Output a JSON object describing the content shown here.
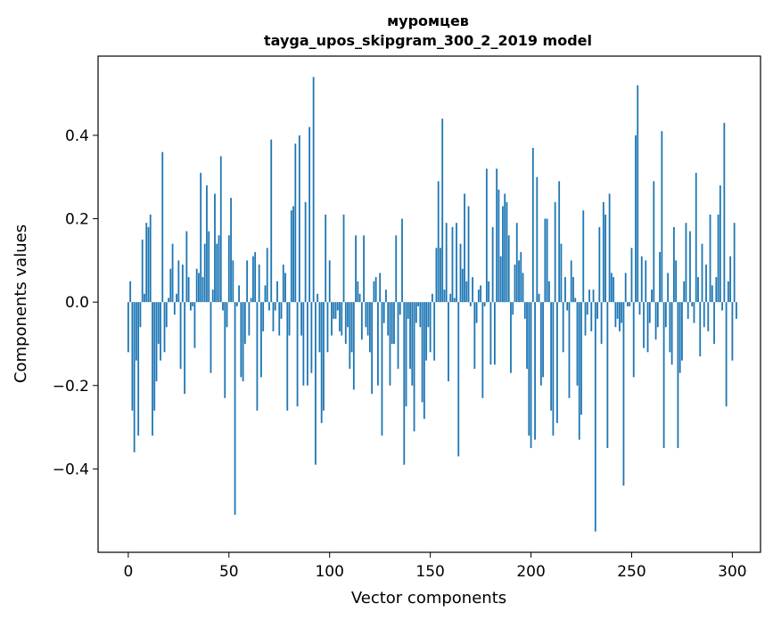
{
  "chart_data": {
    "type": "bar",
    "title_line1": "муромцев",
    "title_line2": "tayga_upos_skipgram_300_2_2019 model",
    "xlabel": "Vector components",
    "ylabel": "Components values",
    "xlim": [
      -15,
      314
    ],
    "ylim": [
      -0.6,
      0.59
    ],
    "xticks": [
      0,
      50,
      100,
      150,
      200,
      250,
      300
    ],
    "xtick_labels": [
      "0",
      "50",
      "100",
      "150",
      "200",
      "250",
      "300"
    ],
    "yticks": [
      -0.4,
      -0.2,
      0.0,
      0.2,
      0.4
    ],
    "ytick_labels": [
      "−0.4",
      "−0.2",
      "0.0",
      "0.2",
      "0.4"
    ],
    "bar_color": "#1f77b4",
    "values": [
      -0.12,
      0.05,
      -0.26,
      -0.36,
      -0.14,
      -0.32,
      -0.06,
      0.15,
      0.02,
      0.19,
      0.18,
      0.21,
      -0.32,
      -0.26,
      -0.19,
      -0.1,
      -0.14,
      0.36,
      -0.12,
      -0.06,
      0.01,
      0.08,
      0.14,
      -0.03,
      0.02,
      0.1,
      -0.16,
      0.09,
      -0.22,
      0.17,
      0.06,
      -0.02,
      -0.01,
      -0.11,
      0.08,
      0.07,
      0.31,
      0.06,
      0.14,
      0.28,
      0.17,
      -0.17,
      0.03,
      0.26,
      0.14,
      0.16,
      0.35,
      -0.02,
      -0.23,
      -0.06,
      0.16,
      0.25,
      0.1,
      -0.51,
      -0.01,
      0.04,
      -0.18,
      -0.19,
      -0.1,
      0.1,
      -0.08,
      0.01,
      0.11,
      0.12,
      -0.26,
      0.09,
      -0.18,
      -0.07,
      0.04,
      0.13,
      -0.02,
      0.39,
      -0.07,
      -0.02,
      0.05,
      -0.08,
      -0.04,
      0.09,
      0.07,
      -0.26,
      -0.08,
      0.22,
      0.23,
      0.38,
      -0.25,
      0.4,
      -0.08,
      -0.2,
      0.24,
      -0.2,
      0.42,
      -0.17,
      0.54,
      -0.39,
      0.02,
      -0.12,
      -0.29,
      -0.26,
      0.21,
      -0.12,
      0.1,
      -0.08,
      -0.04,
      -0.04,
      -0.02,
      -0.07,
      -0.08,
      0.21,
      -0.1,
      -0.06,
      -0.16,
      -0.12,
      -0.21,
      0.16,
      0.05,
      0.02,
      -0.09,
      0.16,
      -0.06,
      -0.08,
      -0.12,
      -0.22,
      0.05,
      0.06,
      -0.2,
      0.07,
      -0.32,
      -0.05,
      0.03,
      -0.08,
      -0.2,
      -0.1,
      -0.1,
      0.16,
      -0.16,
      -0.03,
      0.2,
      -0.39,
      -0.25,
      -0.04,
      -0.16,
      -0.2,
      -0.31,
      -0.05,
      -0.01,
      -0.06,
      -0.24,
      -0.28,
      -0.14,
      -0.06,
      -0.12,
      0.02,
      -0.14,
      0.13,
      0.29,
      0.13,
      0.44,
      0.03,
      0.19,
      -0.19,
      0.02,
      0.18,
      0.01,
      0.19,
      -0.37,
      0.14,
      0.08,
      0.26,
      0.05,
      0.23,
      -0.01,
      0.06,
      -0.16,
      -0.05,
      0.03,
      0.04,
      -0.23,
      -0.01,
      0.32,
      0.05,
      -0.15,
      0.18,
      -0.15,
      0.32,
      0.27,
      0.11,
      0.23,
      0.26,
      0.24,
      0.16,
      -0.17,
      -0.03,
      0.09,
      0.19,
      0.1,
      0.12,
      0.07,
      -0.04,
      -0.16,
      -0.32,
      -0.35,
      0.37,
      -0.33,
      0.3,
      0.02,
      -0.2,
      -0.18,
      0.2,
      0.2,
      0.05,
      -0.26,
      -0.32,
      0.24,
      -0.29,
      0.29,
      0.14,
      -0.12,
      0.06,
      -0.02,
      -0.23,
      0.1,
      0.06,
      0.01,
      -0.2,
      -0.33,
      -0.27,
      0.22,
      -0.08,
      -0.03,
      0.03,
      -0.07,
      0.03,
      -0.55,
      -0.04,
      0.18,
      -0.1,
      0.24,
      0.21,
      -0.35,
      0.26,
      0.07,
      0.06,
      -0.06,
      -0.04,
      -0.07,
      -0.05,
      -0.44,
      0.07,
      -0.01,
      -0.01,
      0.13,
      -0.18,
      0.4,
      0.52,
      -0.03,
      0.11,
      -0.11,
      0.1,
      -0.12,
      -0.05,
      0.03,
      0.29,
      -0.09,
      -0.06,
      0.12,
      0.41,
      -0.35,
      -0.06,
      0.07,
      -0.12,
      -0.15,
      0.18,
      0.1,
      -0.35,
      -0.17,
      -0.14,
      0.05,
      0.19,
      -0.04,
      0.17,
      -0.01,
      -0.05,
      0.31,
      0.06,
      -0.13,
      0.14,
      -0.06,
      0.09,
      -0.07,
      0.21,
      0.04,
      -0.1,
      0.06,
      0.21,
      0.28,
      -0.02,
      0.43,
      -0.25,
      0.05,
      0.11,
      -0.14,
      0.19,
      -0.04
    ]
  }
}
